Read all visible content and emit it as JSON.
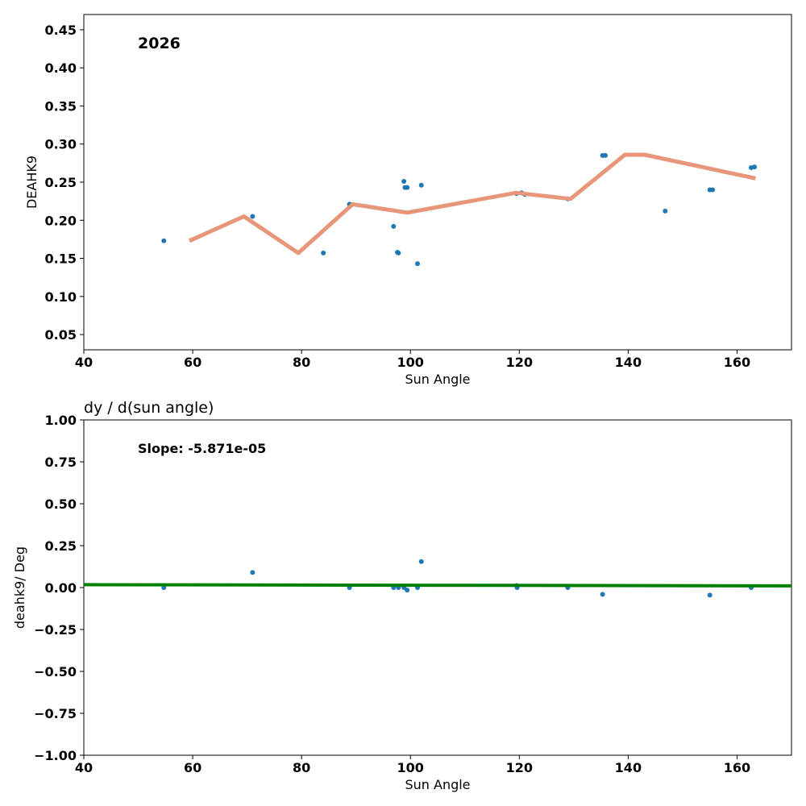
{
  "chart_data": [
    {
      "type": "scatter",
      "title": "",
      "annotation": "2026",
      "xlabel": "Sun Angle",
      "ylabel": "DEAHK9",
      "xlim": [
        40,
        170
      ],
      "ylim": [
        0.03,
        0.47
      ],
      "xticks": [
        40,
        60,
        80,
        100,
        120,
        140,
        160
      ],
      "yticks": [
        0.05,
        0.1,
        0.15,
        0.2,
        0.25,
        0.3,
        0.35,
        0.4,
        0.45
      ],
      "point_color": "#1f77b4",
      "points": {
        "x": [
          54.7,
          71.0,
          84.0,
          88.8,
          96.9,
          97.6,
          97.8,
          98.8,
          99.0,
          99.4,
          101.3,
          102.0,
          119.5,
          120.4,
          121.0,
          128.9,
          135.3,
          135.8,
          146.8,
          155.0,
          155.5,
          162.6,
          163.2
        ],
        "y": [
          0.173,
          0.205,
          0.157,
          0.221,
          0.192,
          0.158,
          0.157,
          0.251,
          0.243,
          0.243,
          0.143,
          0.246,
          0.235,
          0.236,
          0.234,
          0.228,
          0.285,
          0.285,
          0.212,
          0.24,
          0.24,
          0.269,
          0.27
        ]
      },
      "fit_line": {
        "color": "#e8967a",
        "x": [
          59.4,
          69.4,
          79.4,
          89.4,
          99.4,
          119.4,
          129.4,
          139.4,
          143.0,
          163.4
        ],
        "y": [
          0.173,
          0.205,
          0.157,
          0.221,
          0.21,
          0.236,
          0.228,
          0.286,
          0.286,
          0.255
        ]
      }
    },
    {
      "type": "scatter",
      "title": "dy / d(sun angle)",
      "annotation": "Slope: -5.871e-05",
      "xlabel": "Sun Angle",
      "ylabel": "deahk9/ Deg",
      "xlim": [
        40,
        170
      ],
      "ylim": [
        -1.0,
        1.0
      ],
      "xticks": [
        40,
        60,
        80,
        100,
        120,
        140,
        160
      ],
      "yticks": [
        -1.0,
        -0.75,
        -0.5,
        -0.25,
        0.0,
        0.25,
        0.5,
        0.75,
        1.0
      ],
      "point_color": "#1f77b4",
      "points": {
        "x": [
          54.7,
          71.0,
          88.8,
          96.9,
          97.8,
          98.8,
          99.4,
          101.3,
          102.0,
          119.5,
          119.6,
          128.9,
          135.3,
          155.0,
          162.6
        ],
        "y": [
          0.0,
          0.09,
          0.0,
          0.0,
          0.0,
          0.0,
          -0.015,
          0.0,
          0.155,
          0.012,
          0.0,
          0.0,
          -0.04,
          -0.045,
          0.0
        ]
      },
      "fit_line": {
        "color": "#008000",
        "x": [
          40,
          170
        ],
        "y": [
          0.0175,
          0.0099
        ]
      }
    }
  ]
}
